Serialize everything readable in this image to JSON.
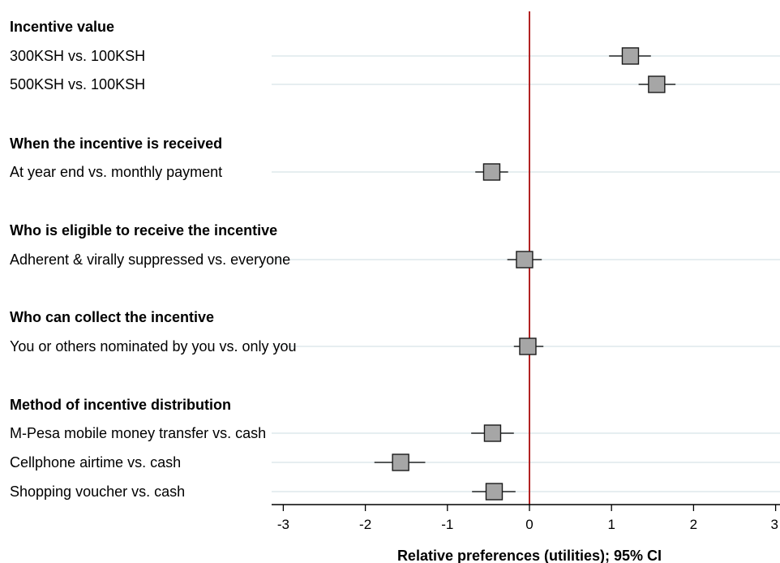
{
  "chart_data": {
    "type": "forest",
    "xlabel": "Relative preferences (utilities); 95% CI",
    "xlim": [
      -3,
      3
    ],
    "xticks": [
      -3,
      -2,
      -1,
      0,
      1,
      2,
      3
    ],
    "xtick_labels": [
      "-3",
      "-2",
      "-1",
      "0",
      "1",
      "2",
      "3"
    ],
    "reference_line": {
      "x": 0,
      "color": "#b22222"
    },
    "colors": {
      "marker_fill": "#a6a6a6",
      "marker_edge": "#1a1a1a",
      "gridline": "#e6eef0"
    },
    "groups": [
      {
        "header": "Incentive value",
        "items": [
          {
            "label": "300KSH vs. 100KSH",
            "estimate": 1.23,
            "ci": [
              0.97,
              1.48
            ]
          },
          {
            "label": "500KSH vs. 100KSH",
            "estimate": 1.55,
            "ci": [
              1.33,
              1.78
            ]
          }
        ]
      },
      {
        "header": "When the incentive is received",
        "items": [
          {
            "label": "At year end vs. monthly payment",
            "estimate": -0.46,
            "ci": [
              -0.66,
              -0.26
            ]
          }
        ]
      },
      {
        "header": "Who is eligible to receive the incentive",
        "items": [
          {
            "label": "Adherent & virally suppressed vs. everyone",
            "estimate": -0.06,
            "ci": [
              -0.27,
              0.15
            ]
          }
        ]
      },
      {
        "header": "Who can collect the incentive",
        "items": [
          {
            "label": "You or others nominated by you vs. only you",
            "estimate": -0.02,
            "ci": [
              -0.19,
              0.17
            ]
          }
        ]
      },
      {
        "header": "Method of incentive distribution",
        "items": [
          {
            "label": "M-Pesa mobile money transfer vs. cash",
            "estimate": -0.45,
            "ci": [
              -0.71,
              -0.19
            ]
          },
          {
            "label": "Cellphone airtime vs. cash",
            "estimate": -1.57,
            "ci": [
              -1.89,
              -1.27
            ]
          },
          {
            "label": "Shopping voucher vs. cash",
            "estimate": -0.43,
            "ci": [
              -0.7,
              -0.17
            ]
          }
        ]
      }
    ]
  }
}
